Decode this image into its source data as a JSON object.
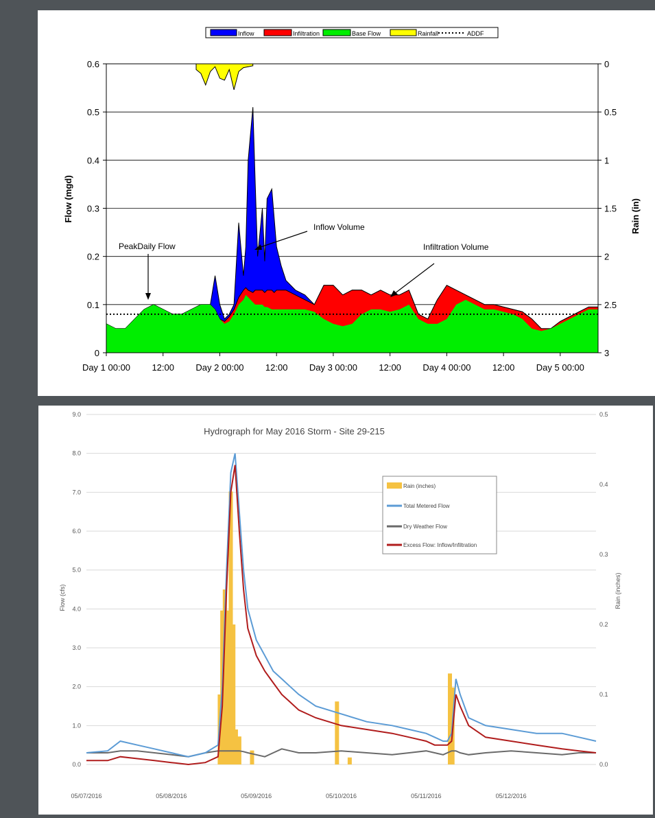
{
  "chart_data": [
    {
      "type": "area",
      "title": "",
      "xlabel": "",
      "ylabel": "Flow (mgd)",
      "y2label": "Rain (in)",
      "ylim": [
        0,
        0.6
      ],
      "y2lim": [
        3,
        0
      ],
      "yticks": [
        "0",
        "0.1",
        "0.2",
        "0.3",
        "0.4",
        "0.5",
        "0.6"
      ],
      "y2ticks": [
        "3",
        "2.5",
        "2",
        "1.5",
        "1",
        "0.5",
        "0"
      ],
      "xticks": [
        "Day 1 00:00",
        "12:00",
        "Day 2 00:00",
        "12:00",
        "Day 3 00:00",
        "12:00",
        "Day 4 00:00",
        "12:00",
        "Day 5 00:00"
      ],
      "xlim_hours": [
        0,
        104
      ],
      "grid": true,
      "legend_position": "top-center",
      "legend": [
        "Inflow",
        "Infiltration",
        "Base Flow",
        "Rainfall",
        "ADDF"
      ],
      "colors": {
        "inflow": "#0000ff",
        "infiltration": "#ff0000",
        "base": "#00ee00",
        "rain": "#ffff00",
        "addf": "#000000"
      },
      "addf": 0.08,
      "hours": [
        0,
        2,
        4,
        6,
        8,
        10,
        12,
        14,
        16,
        18,
        20,
        22,
        23,
        24,
        25,
        26,
        27,
        28,
        29,
        29.5,
        30,
        31,
        31.5,
        32,
        33,
        33.5,
        34,
        35,
        35.5,
        36,
        37,
        38,
        39,
        40,
        42,
        44,
        46,
        48,
        50,
        52,
        54,
        56,
        58,
        60,
        62,
        64,
        66,
        68,
        70,
        72,
        74,
        76,
        78,
        80,
        82,
        84,
        86,
        88,
        90,
        92,
        94,
        96,
        98,
        100,
        102,
        104
      ],
      "base_flow": [
        0.06,
        0.05,
        0.05,
        0.07,
        0.09,
        0.1,
        0.09,
        0.08,
        0.08,
        0.09,
        0.1,
        0.1,
        0.09,
        0.07,
        0.06,
        0.065,
        0.08,
        0.1,
        0.11,
        0.12,
        0.115,
        0.105,
        0.1,
        0.1,
        0.1,
        0.095,
        0.095,
        0.09,
        0.09,
        0.09,
        0.09,
        0.09,
        0.09,
        0.09,
        0.09,
        0.085,
        0.07,
        0.06,
        0.055,
        0.06,
        0.08,
        0.09,
        0.09,
        0.085,
        0.09,
        0.1,
        0.07,
        0.06,
        0.06,
        0.07,
        0.1,
        0.11,
        0.1,
        0.09,
        0.09,
        0.085,
        0.08,
        0.07,
        0.05,
        0.045,
        0.05,
        0.06,
        0.07,
        0.08,
        0.09,
        0.09
      ],
      "infiltration_top": [
        0.06,
        0.05,
        0.05,
        0.07,
        0.09,
        0.1,
        0.09,
        0.08,
        0.08,
        0.09,
        0.1,
        0.1,
        0.09,
        0.07,
        0.065,
        0.075,
        0.09,
        0.115,
        0.13,
        0.135,
        0.13,
        0.125,
        0.13,
        0.13,
        0.13,
        0.125,
        0.13,
        0.13,
        0.125,
        0.13,
        0.13,
        0.13,
        0.125,
        0.12,
        0.11,
        0.1,
        0.14,
        0.14,
        0.12,
        0.13,
        0.13,
        0.12,
        0.13,
        0.12,
        0.12,
        0.13,
        0.08,
        0.07,
        0.11,
        0.14,
        0.13,
        0.12,
        0.11,
        0.1,
        0.1,
        0.095,
        0.09,
        0.085,
        0.07,
        0.05,
        0.05,
        0.065,
        0.075,
        0.085,
        0.095,
        0.095
      ],
      "total_top": [
        0.06,
        0.05,
        0.05,
        0.07,
        0.09,
        0.1,
        0.09,
        0.08,
        0.08,
        0.09,
        0.1,
        0.1,
        0.16,
        0.1,
        0.07,
        0.08,
        0.1,
        0.27,
        0.16,
        0.22,
        0.4,
        0.51,
        0.35,
        0.2,
        0.3,
        0.19,
        0.32,
        0.34,
        0.28,
        0.22,
        0.18,
        0.15,
        0.14,
        0.13,
        0.12,
        0.1,
        0.14,
        0.14,
        0.12,
        0.13,
        0.13,
        0.12,
        0.13,
        0.12,
        0.12,
        0.13,
        0.08,
        0.07,
        0.11,
        0.14,
        0.13,
        0.12,
        0.11,
        0.1,
        0.1,
        0.095,
        0.09,
        0.085,
        0.07,
        0.05,
        0.05,
        0.065,
        0.075,
        0.085,
        0.095,
        0.095
      ],
      "rainfall_hours": [
        19,
        20,
        21,
        22,
        23,
        24,
        25,
        26,
        27,
        28,
        29,
        30,
        31
      ],
      "rainfall_in": [
        0.06,
        0.1,
        0.22,
        0.08,
        0.03,
        0.15,
        0.17,
        0.06,
        0.27,
        0.08,
        0.04,
        0.03,
        0.02
      ],
      "annotations": [
        "PeakDaily Flow",
        "Inflow Volume",
        "Infiltration  Volume"
      ]
    },
    {
      "type": "line",
      "title": "Hydrograph for May 2016 Storm - Site 29-215",
      "xlabel": "",
      "ylabel": "Flow (cfs)",
      "y2label": "Rain (inches)",
      "ylim": [
        0,
        9
      ],
      "y2lim": [
        0,
        0.5
      ],
      "yticks": [
        "0.0",
        "1.0",
        "2.0",
        "3.0",
        "4.0",
        "5.0",
        "6.0",
        "7.0",
        "8.0",
        "9.0"
      ],
      "y2ticks": [
        "0.0",
        "0.1",
        "0.2",
        "0.3",
        "0.4",
        "0.5"
      ],
      "xticks": [
        "05/07/2016",
        "05/08/2016",
        "05/09/2016",
        "05/10/2016",
        "05/11/2016",
        "05/12/2016"
      ],
      "xlim_days": [
        0,
        6
      ],
      "grid": true,
      "legend_position": "top-right",
      "legend": [
        "Rain (inches)",
        "Total Metered Flow",
        "Dry Weather Flow",
        "Excess Flow: Inflow/Infiltration"
      ],
      "colors": {
        "rain": "#f5c242",
        "total": "#5b9bd5",
        "dry": "#6a6a6a",
        "excess": "#b01c1c"
      },
      "x_days": [
        0,
        0.25,
        0.4,
        0.6,
        0.8,
        1.0,
        1.2,
        1.4,
        1.55,
        1.6,
        1.65,
        1.7,
        1.75,
        1.8,
        1.85,
        1.9,
        2.0,
        2.1,
        2.2,
        2.3,
        2.4,
        2.5,
        2.7,
        3.0,
        3.3,
        3.6,
        3.8,
        4.0,
        4.1,
        4.2,
        4.25,
        4.3,
        4.35,
        4.4,
        4.5,
        4.7,
        5.0,
        5.3,
        5.6,
        5.8,
        6.0
      ],
      "total_flow": [
        0.3,
        0.35,
        0.6,
        0.5,
        0.4,
        0.3,
        0.2,
        0.3,
        0.5,
        2.0,
        5.0,
        7.5,
        8.0,
        6.5,
        5.0,
        4.0,
        3.2,
        2.8,
        2.4,
        2.2,
        2.0,
        1.8,
        1.5,
        1.3,
        1.1,
        1.0,
        0.9,
        0.8,
        0.7,
        0.6,
        0.6,
        0.8,
        2.2,
        1.8,
        1.2,
        1.0,
        0.9,
        0.8,
        0.8,
        0.7,
        0.6
      ],
      "excess_flow": [
        0.1,
        0.1,
        0.2,
        0.15,
        0.1,
        0.05,
        0.0,
        0.05,
        0.2,
        1.5,
        4.5,
        7.0,
        7.7,
        6.0,
        4.5,
        3.5,
        2.8,
        2.4,
        2.1,
        1.8,
        1.6,
        1.4,
        1.2,
        1.0,
        0.9,
        0.8,
        0.7,
        0.6,
        0.5,
        0.5,
        0.5,
        0.6,
        1.8,
        1.5,
        1.0,
        0.7,
        0.6,
        0.5,
        0.4,
        0.35,
        0.3
      ],
      "dry_weather_flow": [
        0.3,
        0.3,
        0.35,
        0.35,
        0.3,
        0.25,
        0.2,
        0.3,
        0.35,
        0.35,
        0.35,
        0.35,
        0.35,
        0.35,
        0.33,
        0.3,
        0.25,
        0.2,
        0.3,
        0.4,
        0.35,
        0.3,
        0.3,
        0.35,
        0.3,
        0.25,
        0.3,
        0.35,
        0.3,
        0.25,
        0.3,
        0.35,
        0.35,
        0.3,
        0.25,
        0.3,
        0.35,
        0.3,
        0.25,
        0.3,
        0.3
      ],
      "rain_days": [
        1.57,
        1.6,
        1.63,
        1.66,
        1.7,
        1.73,
        1.76,
        1.8,
        1.95,
        2.95,
        3.1,
        4.28,
        4.31
      ],
      "rain_inches": [
        0.1,
        0.22,
        0.25,
        0.22,
        0.39,
        0.2,
        0.05,
        0.04,
        0.02,
        0.09,
        0.01,
        0.13,
        0.11
      ]
    }
  ]
}
